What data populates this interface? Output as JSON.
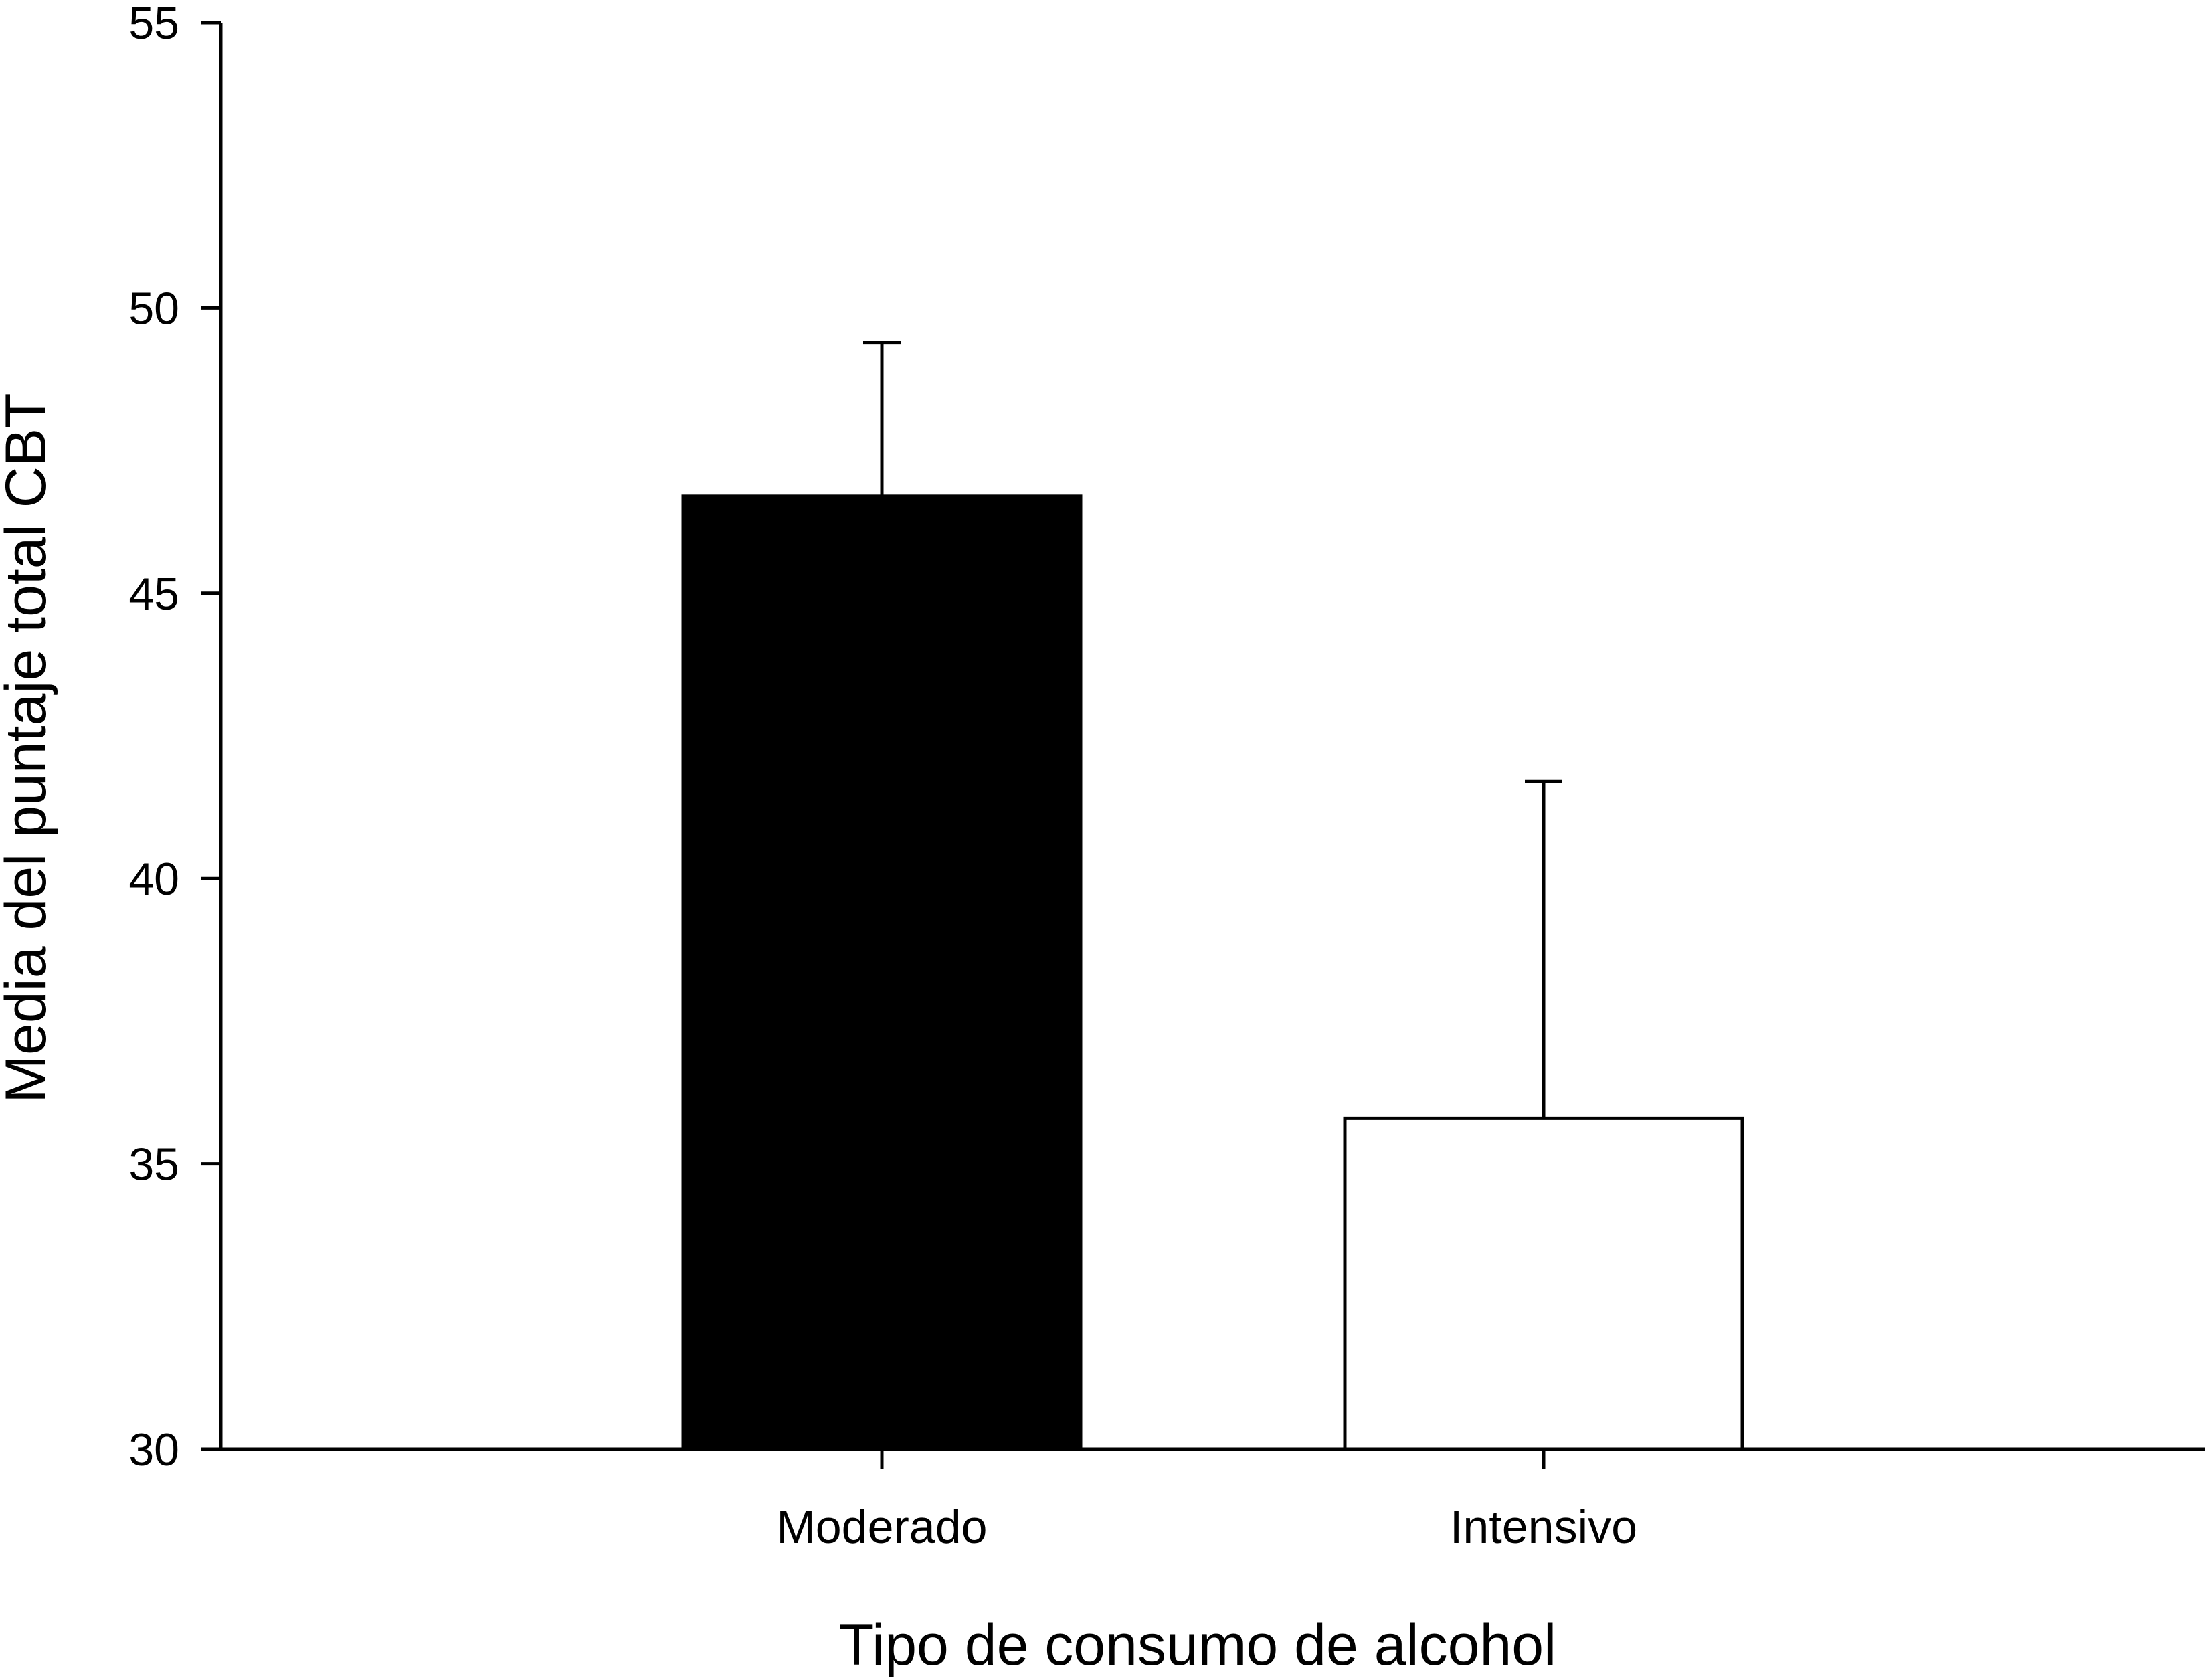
{
  "chart_data": {
    "type": "bar",
    "title": "",
    "xlabel": "Tipo de consumo de alcohol",
    "ylabel": "Media del puntaje total CBT",
    "ylim": [
      30,
      55
    ],
    "yticks": [
      30,
      35,
      40,
      45,
      50,
      55
    ],
    "categories": [
      "Moderado",
      "Intensivo"
    ],
    "values": [
      46.7,
      35.8
    ],
    "error_upper": [
      49.4,
      41.7
    ],
    "bar_colors": [
      "#000000",
      "#ffffff"
    ],
    "edge_color": "#000000",
    "grid": false,
    "legend": "none"
  }
}
